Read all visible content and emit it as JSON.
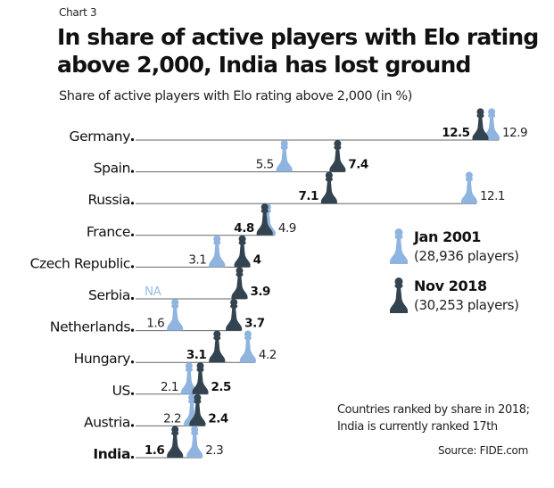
{
  "header": {
    "kicker": "Chart 3",
    "title_line1": "In share of active players with Elo rating",
    "title_line2": "above 2,000, India has lost ground",
    "subtitle": "Share of active players with Elo rating above 2,000 (in %)"
  },
  "legend": {
    "items": [
      {
        "label": "Jan 2001",
        "sublabel": "(28,936 players)",
        "color": "#8fb4e0"
      },
      {
        "label": "Nov 2018",
        "sublabel": "(30,253 players)",
        "color": "#33434f"
      }
    ]
  },
  "note": {
    "line1": "Countries ranked by share in 2018;",
    "line2": "India is currently ranked 17th"
  },
  "source": "Source: FIDE.com",
  "chart_data": {
    "type": "dot-plot",
    "title": "In share of active players with Elo rating above 2,000, India has lost ground",
    "subtitle": "Share of active players with Elo rating above 2,000 (in %)",
    "xlabel": "",
    "ylabel": "",
    "xlim": [
      0,
      13
    ],
    "grid": false,
    "legend_position": "right",
    "categories": [
      "Germany",
      "Spain",
      "Russia",
      "France",
      "Czech Republic",
      "Serbia",
      "Netherlands",
      "Hungary",
      "US",
      "Austria",
      "India"
    ],
    "highlight_category": "India",
    "series": [
      {
        "name": "Jan 2001",
        "note": "(28,936 players)",
        "color": "#8fb4e0",
        "values": [
          12.9,
          5.5,
          12.1,
          4.9,
          3.1,
          null,
          1.6,
          4.2,
          2.1,
          2.2,
          2.3
        ],
        "labels": [
          "12.9",
          "5.5",
          "12.1",
          "4.9",
          "3.1",
          "NA",
          "1.6",
          "4.2",
          "2.1",
          "2.2",
          "2.3"
        ]
      },
      {
        "name": "Nov 2018",
        "note": "(30,253 players)",
        "color": "#33434f",
        "values": [
          12.5,
          7.4,
          7.1,
          4.8,
          4.0,
          3.9,
          3.7,
          3.1,
          2.5,
          2.4,
          1.6
        ],
        "labels": [
          "12.5",
          "7.4",
          "7.1",
          "4.8",
          "4",
          "3.9",
          "3.7",
          "3.1",
          "2.5",
          "2.4",
          "1.6"
        ]
      }
    ]
  }
}
